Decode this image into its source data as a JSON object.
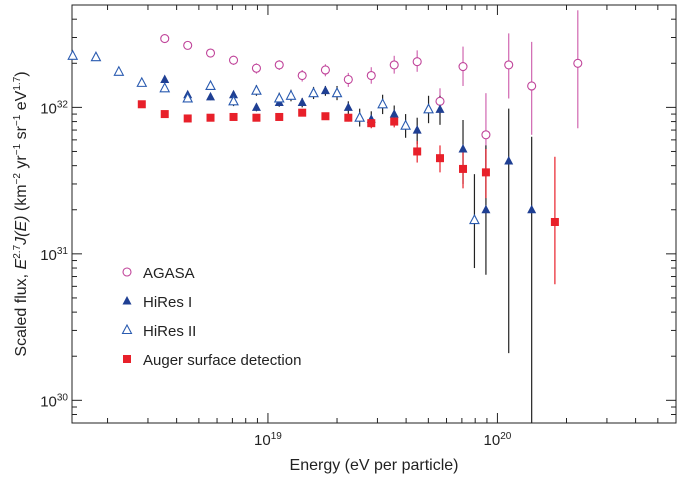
{
  "chart_data": {
    "type": "scatter",
    "xlabel": "Energy (eV per particle)",
    "ylabel_parts": [
      "Scaled flux, ",
      "E",
      "2.7",
      "J(E)",
      " (km",
      "−2",
      " yr",
      "−1",
      " sr",
      "−1",
      " eV",
      "1.7",
      ")"
    ],
    "xscale": "log",
    "yscale": "log",
    "xlim": [
      1.4e+18,
      6e+20
    ],
    "ylim": [
      7e+29,
      5e+32
    ],
    "x_ticks": [
      {
        "value": 1e+19,
        "base": "10",
        "exp": "19"
      },
      {
        "value": 1e+20,
        "base": "10",
        "exp": "20"
      }
    ],
    "y_ticks": [
      {
        "value": 1e+30,
        "base": "10",
        "exp": "30"
      },
      {
        "value": 1e+31,
        "base": "10",
        "exp": "31"
      },
      {
        "value": 1e+32,
        "base": "10",
        "exp": "32"
      }
    ],
    "grid": false,
    "legend_position": "bottom-left",
    "series": [
      {
        "name": "AGASA",
        "marker": "circle-open",
        "color": "#c0449a",
        "errorbar_color": "#d066b0",
        "points": [
          {
            "x": 3.55e+18,
            "y": 2.95e+32,
            "lo": 2.8e+32,
            "hi": 3.1e+32
          },
          {
            "x": 4.47e+18,
            "y": 2.65e+32,
            "lo": 2.5e+32,
            "hi": 2.8e+32
          },
          {
            "x": 5.62e+18,
            "y": 2.35e+32,
            "lo": 2.2e+32,
            "hi": 2.5e+32
          },
          {
            "x": 7.08e+18,
            "y": 2.1e+32,
            "lo": 1.95e+32,
            "hi": 2.25e+32
          },
          {
            "x": 8.91e+18,
            "y": 1.85e+32,
            "lo": 1.7e+32,
            "hi": 2e+32
          },
          {
            "x": 1.12e+19,
            "y": 1.95e+32,
            "lo": 1.8e+32,
            "hi": 2.1e+32
          },
          {
            "x": 1.41e+19,
            "y": 1.65e+32,
            "lo": 1.5e+32,
            "hi": 1.8e+32
          },
          {
            "x": 1.78e+19,
            "y": 1.8e+32,
            "lo": 1.63e+32,
            "hi": 1.97e+32
          },
          {
            "x": 2.24e+19,
            "y": 1.55e+32,
            "lo": 1.38e+32,
            "hi": 1.72e+32
          },
          {
            "x": 2.82e+19,
            "y": 1.65e+32,
            "lo": 1.45e+32,
            "hi": 1.88e+32
          },
          {
            "x": 3.55e+19,
            "y": 1.95e+32,
            "lo": 1.7e+32,
            "hi": 2.25e+32
          },
          {
            "x": 4.47e+19,
            "y": 2.05e+32,
            "lo": 1.75e+32,
            "hi": 2.45e+32
          },
          {
            "x": 5.62e+19,
            "y": 1.1e+32,
            "lo": 9e+31,
            "hi": 1.35e+32
          },
          {
            "x": 7.08e+19,
            "y": 1.9e+32,
            "lo": 1.4e+32,
            "hi": 2.6e+32
          },
          {
            "x": 8.91e+19,
            "y": 6.5e+31,
            "lo": 3.8e+31,
            "hi": 1.25e+32
          },
          {
            "x": 1.12e+20,
            "y": 1.95e+32,
            "lo": 1.15e+32,
            "hi": 3.2e+32
          },
          {
            "x": 1.41e+20,
            "y": 1.4e+32,
            "lo": 6.5e+31,
            "hi": 2.8e+32
          },
          {
            "x": 2.24e+20,
            "y": 2e+32,
            "lo": 7.2e+31,
            "hi": 4.6e+32
          }
        ]
      },
      {
        "name": "HiRes I",
        "marker": "triangle-filled",
        "color": "#1f3f93",
        "errorbar_color": "#222222",
        "points": [
          {
            "x": 3.55e+18,
            "y": 1.55e+32,
            "lo": 1.48e+32,
            "hi": 1.62e+32
          },
          {
            "x": 4.47e+18,
            "y": 1.22e+32,
            "lo": 1.16e+32,
            "hi": 1.28e+32
          },
          {
            "x": 5.62e+18,
            "y": 1.18e+32,
            "lo": 1.12e+32,
            "hi": 1.24e+32
          },
          {
            "x": 7.08e+18,
            "y": 1.22e+32,
            "lo": 1.15e+32,
            "hi": 1.29e+32
          },
          {
            "x": 8.91e+18,
            "y": 1e+32,
            "lo": 9.4e+31,
            "hi": 1.06e+32
          },
          {
            "x": 1.12e+19,
            "y": 1.08e+32,
            "lo": 1.01e+32,
            "hi": 1.15e+32
          },
          {
            "x": 1.41e+19,
            "y": 1.08e+32,
            "lo": 1e+32,
            "hi": 1.16e+32
          },
          {
            "x": 1.78e+19,
            "y": 1.3e+32,
            "lo": 1.2e+32,
            "hi": 1.4e+32
          },
          {
            "x": 2.24e+19,
            "y": 1e+32,
            "lo": 9e+31,
            "hi": 1.1e+32
          },
          {
            "x": 2.82e+19,
            "y": 8.3e+31,
            "lo": 7.3e+31,
            "hi": 9.4e+31
          },
          {
            "x": 3.55e+19,
            "y": 9e+31,
            "lo": 7.7e+31,
            "hi": 1.03e+32
          },
          {
            "x": 4.47e+19,
            "y": 7e+31,
            "lo": 5.6e+31,
            "hi": 8.5e+31
          },
          {
            "x": 5.62e+19,
            "y": 9.7e+31,
            "lo": 7.6e+31,
            "hi": 1.2e+32
          },
          {
            "x": 7.08e+19,
            "y": 5.2e+31,
            "lo": 3e+31,
            "hi": 8.2e+31
          },
          {
            "x": 8.91e+19,
            "y": 2e+31,
            "lo": 7.2e+30,
            "hi": 5.5e+31
          },
          {
            "x": 1.12e+20,
            "y": 4.3e+31,
            "lo": 2.1e+30,
            "hi": 9.8e+31
          },
          {
            "x": 1.41e+20,
            "y": 2e+31,
            "lo": 6e+29,
            "hi": 6.3e+31
          }
        ]
      },
      {
        "name": "HiRes II",
        "marker": "triangle-open",
        "color": "#2a5bb0",
        "errorbar_color": "#222222",
        "points": [
          {
            "x": 1.41e+18,
            "y": 2.25e+32,
            "lo": 2.18e+32,
            "hi": 2.32e+32
          },
          {
            "x": 1.78e+18,
            "y": 2.2e+32,
            "lo": 2.13e+32,
            "hi": 2.27e+32
          },
          {
            "x": 2.24e+18,
            "y": 1.75e+32,
            "lo": 1.69e+32,
            "hi": 1.81e+32
          },
          {
            "x": 2.82e+18,
            "y": 1.47e+32,
            "lo": 1.41e+32,
            "hi": 1.53e+32
          },
          {
            "x": 3.55e+18,
            "y": 1.35e+32,
            "lo": 1.29e+32,
            "hi": 1.41e+32
          },
          {
            "x": 4.47e+18,
            "y": 1.15e+32,
            "lo": 1.09e+32,
            "hi": 1.21e+32
          },
          {
            "x": 5.62e+18,
            "y": 1.4e+32,
            "lo": 1.32e+32,
            "hi": 1.48e+32
          },
          {
            "x": 7.08e+18,
            "y": 1.1e+32,
            "lo": 1.02e+32,
            "hi": 1.18e+32
          },
          {
            "x": 8.91e+18,
            "y": 1.3e+32,
            "lo": 1.2e+32,
            "hi": 1.42e+32
          },
          {
            "x": 1.12e+19,
            "y": 1.15e+32,
            "lo": 1.05e+32,
            "hi": 1.26e+32
          },
          {
            "x": 1.26e+19,
            "y": 1.2e+32,
            "lo": 1.1e+32,
            "hi": 1.32e+32
          },
          {
            "x": 1.58e+19,
            "y": 1.25e+32,
            "lo": 1.14e+32,
            "hi": 1.38e+32
          },
          {
            "x": 2e+19,
            "y": 1.25e+32,
            "lo": 1.12e+32,
            "hi": 1.4e+32
          },
          {
            "x": 2.51e+19,
            "y": 8.5e+31,
            "lo": 7.4e+31,
            "hi": 9.8e+31
          },
          {
            "x": 3.16e+19,
            "y": 1.05e+32,
            "lo": 9e+31,
            "hi": 1.22e+32
          },
          {
            "x": 3.98e+19,
            "y": 7.5e+31,
            "lo": 6.2e+31,
            "hi": 9e+31
          },
          {
            "x": 5.01e+19,
            "y": 9.7e+31,
            "lo": 7.8e+31,
            "hi": 1.2e+32
          },
          {
            "x": 7.94e+19,
            "y": 1.7e+31,
            "lo": 8e+30,
            "hi": 3.5e+31
          }
        ]
      },
      {
        "name": "Auger surface detection",
        "marker": "square-filled",
        "color": "#e8202a",
        "errorbar_color": "#e8202a",
        "points": [
          {
            "x": 2.82e+18,
            "y": 1.05e+32,
            "lo": 1.02e+32,
            "hi": 1.08e+32
          },
          {
            "x": 3.55e+18,
            "y": 9e+31,
            "lo": 8.7e+31,
            "hi": 9.3e+31
          },
          {
            "x": 4.47e+18,
            "y": 8.4e+31,
            "lo": 8.1e+31,
            "hi": 8.7e+31
          },
          {
            "x": 5.62e+18,
            "y": 8.5e+31,
            "lo": 8.2e+31,
            "hi": 8.8e+31
          },
          {
            "x": 7.08e+18,
            "y": 8.6e+31,
            "lo": 8.3e+31,
            "hi": 8.9e+31
          },
          {
            "x": 8.91e+18,
            "y": 8.5e+31,
            "lo": 8.2e+31,
            "hi": 8.8e+31
          },
          {
            "x": 1.12e+19,
            "y": 8.6e+31,
            "lo": 8.3e+31,
            "hi": 8.9e+31
          },
          {
            "x": 1.41e+19,
            "y": 9.2e+31,
            "lo": 8.8e+31,
            "hi": 9.6e+31
          },
          {
            "x": 1.78e+19,
            "y": 8.7e+31,
            "lo": 8.3e+31,
            "hi": 9.1e+31
          },
          {
            "x": 2.24e+19,
            "y": 8.5e+31,
            "lo": 8e+31,
            "hi": 9e+31
          },
          {
            "x": 2.82e+19,
            "y": 7.8e+31,
            "lo": 7.2e+31,
            "hi": 8.4e+31
          },
          {
            "x": 3.55e+19,
            "y": 8e+31,
            "lo": 7.3e+31,
            "hi": 8.8e+31
          },
          {
            "x": 4.47e+19,
            "y": 5e+31,
            "lo": 4.2e+31,
            "hi": 5.9e+31
          },
          {
            "x": 5.62e+19,
            "y": 4.5e+31,
            "lo": 3.6e+31,
            "hi": 5.5e+31
          },
          {
            "x": 7.08e+19,
            "y": 3.8e+31,
            "lo": 2.8e+31,
            "hi": 5e+31
          },
          {
            "x": 8.91e+19,
            "y": 3.6e+31,
            "lo": 2.4e+31,
            "hi": 5.2e+31
          },
          {
            "x": 1.78e+20,
            "y": 1.65e+31,
            "lo": 6.2e+30,
            "hi": 4.6e+31
          }
        ]
      }
    ]
  }
}
